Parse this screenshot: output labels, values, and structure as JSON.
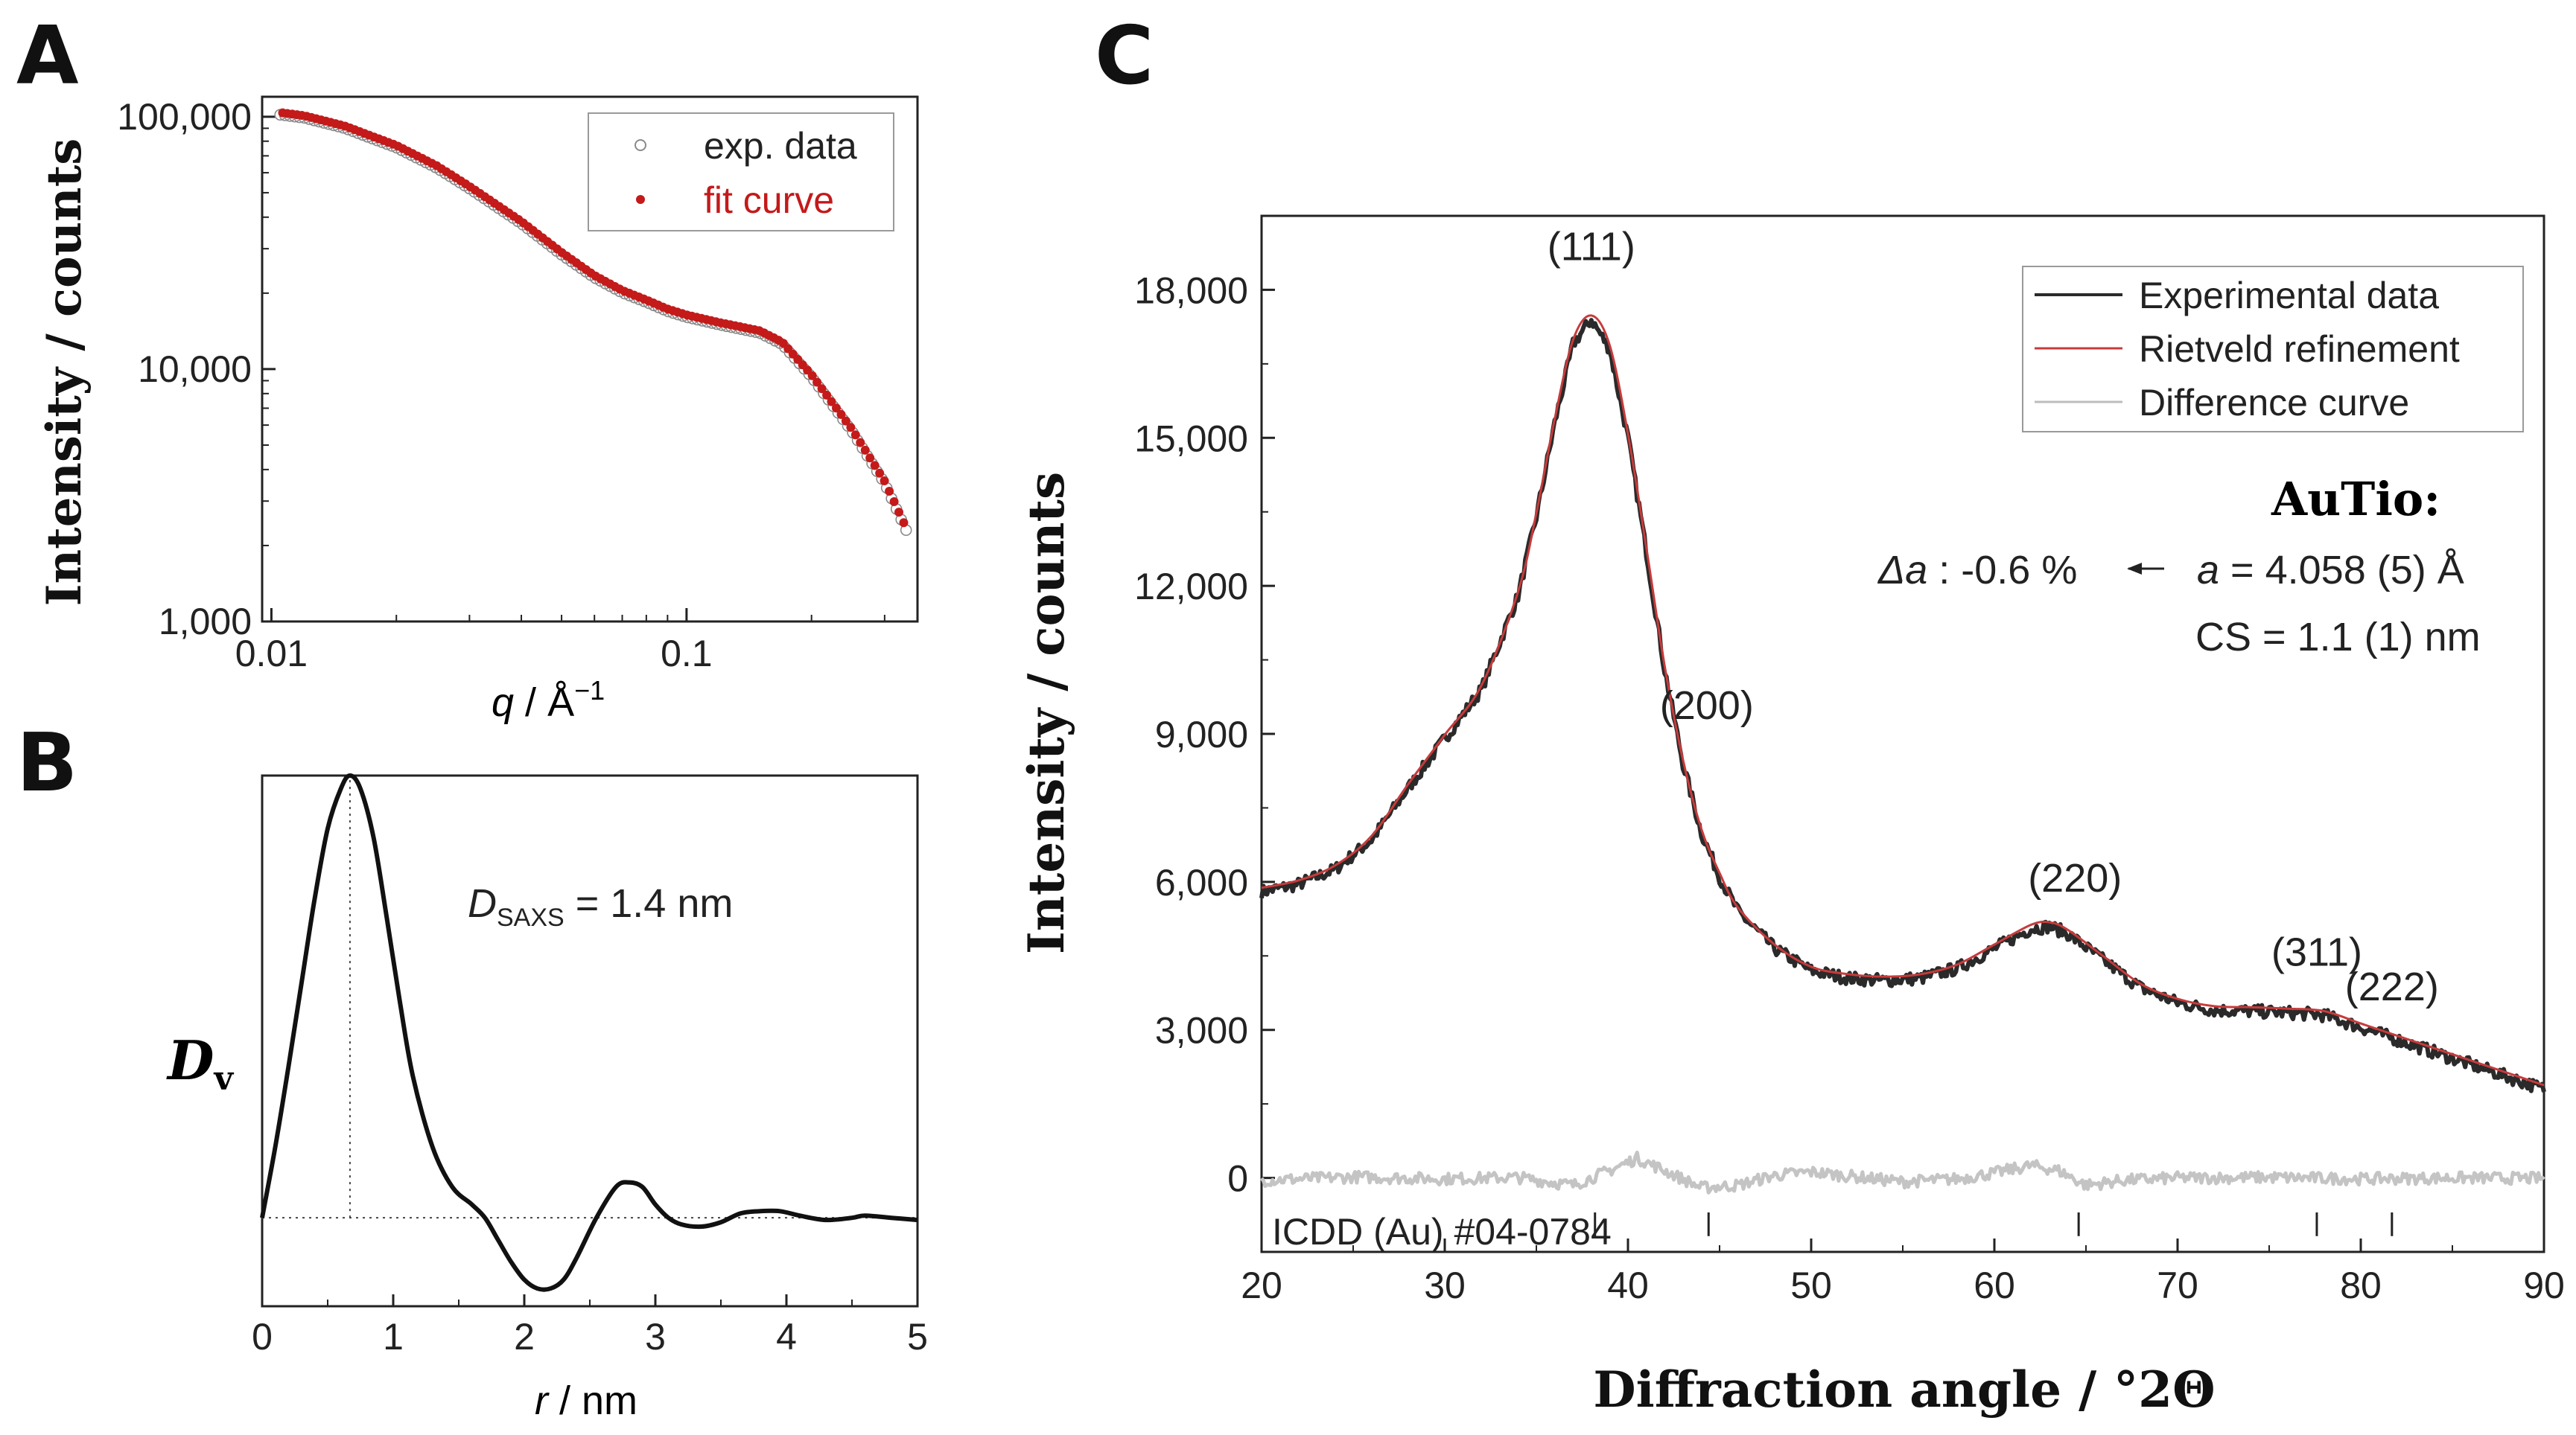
{
  "panel_labels": {
    "a": "A",
    "b": "B",
    "c": "C"
  },
  "chart_data": [
    {
      "id": "A",
      "type": "scatter",
      "scale": "log-log",
      "xlabel_parts": {
        "var": "q",
        "sep": " / ",
        "unit": "Å",
        "exp": "−1"
      },
      "ylabel": "Intensity / counts",
      "xlim": [
        0.0095,
        0.36
      ],
      "ylim": [
        1000,
        120000
      ],
      "x_ticks": [
        {
          "v": 0.01,
          "label": "0.01"
        },
        {
          "v": 0.1,
          "label": "0.1"
        }
      ],
      "y_ticks": [
        {
          "v": 1000,
          "label": "1,000"
        },
        {
          "v": 10000,
          "label": "10,000"
        },
        {
          "v": 100000,
          "label": "100,000"
        }
      ],
      "legend": [
        {
          "name": "exp. data",
          "marker": "open-circle",
          "color": "#8a8a8a"
        },
        {
          "name": "fit curve",
          "marker": "dot",
          "color": "#c41a1a"
        }
      ],
      "series_points": [
        [
          0.01,
          105000
        ],
        [
          0.012,
          101000
        ],
        [
          0.015,
          92000
        ],
        [
          0.02,
          77000
        ],
        [
          0.025,
          64000
        ],
        [
          0.03,
          53000
        ],
        [
          0.04,
          38500
        ],
        [
          0.05,
          29000
        ],
        [
          0.06,
          23500
        ],
        [
          0.07,
          20500
        ],
        [
          0.08,
          18800
        ],
        [
          0.09,
          17300
        ],
        [
          0.1,
          16400
        ],
        [
          0.12,
          15300
        ],
        [
          0.15,
          14200
        ],
        [
          0.17,
          12800
        ],
        [
          0.2,
          9500
        ],
        [
          0.25,
          5800
        ],
        [
          0.3,
          3600
        ],
        [
          0.34,
          2300
        ]
      ]
    },
    {
      "id": "B",
      "type": "line",
      "xlabel_parts": {
        "var": "r",
        "unit": " / nm"
      },
      "ylabel_parts": {
        "main": "D",
        "sub": "v"
      },
      "xlim": [
        0,
        5
      ],
      "ylim": [
        -0.2,
        1.0
      ],
      "x_ticks": [
        0,
        1,
        2,
        3,
        4,
        5
      ],
      "annotation_parts": {
        "var": "D",
        "sub": "SAXS",
        "rest": " = 1.4 nm"
      },
      "peak_r": 0.67,
      "points": [
        [
          0,
          0
        ],
        [
          0.1,
          0.16
        ],
        [
          0.2,
          0.34
        ],
        [
          0.3,
          0.53
        ],
        [
          0.4,
          0.72
        ],
        [
          0.5,
          0.88
        ],
        [
          0.6,
          0.97
        ],
        [
          0.67,
          1.0
        ],
        [
          0.75,
          0.97
        ],
        [
          0.85,
          0.86
        ],
        [
          0.95,
          0.68
        ],
        [
          1.05,
          0.49
        ],
        [
          1.15,
          0.32
        ],
        [
          1.3,
          0.16
        ],
        [
          1.45,
          0.07
        ],
        [
          1.6,
          0.03
        ],
        [
          1.7,
          0.0
        ],
        [
          1.8,
          -0.05
        ],
        [
          1.9,
          -0.1
        ],
        [
          2.0,
          -0.14
        ],
        [
          2.1,
          -0.16
        ],
        [
          2.2,
          -0.16
        ],
        [
          2.3,
          -0.14
        ],
        [
          2.4,
          -0.09
        ],
        [
          2.55,
          0.0
        ],
        [
          2.7,
          0.07
        ],
        [
          2.8,
          0.08
        ],
        [
          2.9,
          0.07
        ],
        [
          3.0,
          0.03
        ],
        [
          3.1,
          0.0
        ],
        [
          3.2,
          -0.015
        ],
        [
          3.35,
          -0.02
        ],
        [
          3.5,
          -0.01
        ],
        [
          3.65,
          0.01
        ],
        [
          3.8,
          0.015
        ],
        [
          3.95,
          0.015
        ],
        [
          4.1,
          0.005
        ],
        [
          4.3,
          -0.005
        ],
        [
          4.5,
          0.0
        ],
        [
          4.6,
          0.005
        ],
        [
          4.8,
          0.0
        ],
        [
          5.0,
          -0.005
        ]
      ]
    },
    {
      "id": "C",
      "type": "line",
      "xlabel": "Diffraction angle / °2Θ",
      "ylabel": "Intensity / counts",
      "xlim": [
        20,
        90
      ],
      "ylim": [
        -1500,
        19500
      ],
      "x_ticks": [
        20,
        30,
        40,
        50,
        60,
        70,
        80,
        90
      ],
      "y_ticks": [
        {
          "v": 0,
          "label": "0"
        },
        {
          "v": 3000,
          "label": "3,000"
        },
        {
          "v": 6000,
          "label": "6,000"
        },
        {
          "v": 9000,
          "label": "9,000"
        },
        {
          "v": 12000,
          "label": "12,000"
        },
        {
          "v": 15000,
          "label": "15,000"
        },
        {
          "v": 18000,
          "label": "18,000"
        }
      ],
      "legend": [
        {
          "name": "Experimental data",
          "color": "#2a2a2a"
        },
        {
          "name": "Rietveld refinement",
          "color": "#c73b3b"
        },
        {
          "name": "Difference curve",
          "color": "#bdbdbd"
        }
      ],
      "peak_labels": [
        {
          "label": "(111)",
          "x": 38.0,
          "y": 18600
        },
        {
          "label": "(200)",
          "x": 44.3,
          "y": 9300
        },
        {
          "label": "(220)",
          "x": 64.4,
          "y": 5800
        },
        {
          "label": "(311)",
          "x": 77.6,
          "y": 4300
        },
        {
          "label": "(222)",
          "x": 81.7,
          "y": 3600
        }
      ],
      "reference_label": "ICDD (Au) #04-0784",
      "reference_ticks": [
        38.2,
        44.4,
        64.6,
        77.6,
        81.7
      ],
      "annotations": {
        "title": "AuTio:",
        "delta_var": "Δa",
        "delta_rest": " : -0.6 %",
        "lattice_var": "a",
        "lattice_rest": " = 4.058 (5) Å",
        "cs": "CS = 1.1 (1) nm"
      },
      "experimental": [
        [
          20,
          5800
        ],
        [
          22,
          5950
        ],
        [
          24,
          6250
        ],
        [
          26,
          6850
        ],
        [
          28,
          7900
        ],
        [
          30,
          8900
        ],
        [
          32,
          9900
        ],
        [
          34,
          11800
        ],
        [
          35,
          13400
        ],
        [
          36,
          15300
        ],
        [
          37,
          16900
        ],
        [
          38,
          17400
        ],
        [
          39,
          16800
        ],
        [
          40,
          15000
        ],
        [
          41,
          12700
        ],
        [
          42,
          10300
        ],
        [
          43,
          8400
        ],
        [
          44,
          7000
        ],
        [
          45,
          6100
        ],
        [
          46,
          5400
        ],
        [
          48,
          4650
        ],
        [
          50,
          4200
        ],
        [
          52,
          4050
        ],
        [
          54,
          4000
        ],
        [
          56,
          4050
        ],
        [
          58,
          4250
        ],
        [
          60,
          4650
        ],
        [
          62,
          5050
        ],
        [
          63,
          5100
        ],
        [
          64,
          4950
        ],
        [
          66,
          4400
        ],
        [
          68,
          3850
        ],
        [
          70,
          3550
        ],
        [
          72,
          3400
        ],
        [
          74,
          3380
        ],
        [
          76,
          3350
        ],
        [
          78,
          3300
        ],
        [
          80,
          3050
        ],
        [
          82,
          2800
        ],
        [
          84,
          2550
        ],
        [
          86,
          2300
        ],
        [
          88,
          2050
        ],
        [
          90,
          1800
        ]
      ],
      "difference": [
        [
          20,
          -50
        ],
        [
          25,
          20
        ],
        [
          30,
          -20
        ],
        [
          34,
          10
        ],
        [
          37,
          -150
        ],
        [
          39,
          150
        ],
        [
          40.5,
          400
        ],
        [
          42,
          150
        ],
        [
          44,
          -200
        ],
        [
          46,
          -150
        ],
        [
          48,
          50
        ],
        [
          50,
          120
        ],
        [
          52,
          40
        ],
        [
          55,
          -80
        ],
        [
          58,
          -20
        ],
        [
          60,
          100
        ],
        [
          62,
          250
        ],
        [
          63.5,
          150
        ],
        [
          65,
          -150
        ],
        [
          67,
          -50
        ],
        [
          70,
          0
        ],
        [
          75,
          10
        ],
        [
          80,
          -20
        ],
        [
          85,
          0
        ],
        [
          90,
          -10
        ]
      ]
    }
  ]
}
